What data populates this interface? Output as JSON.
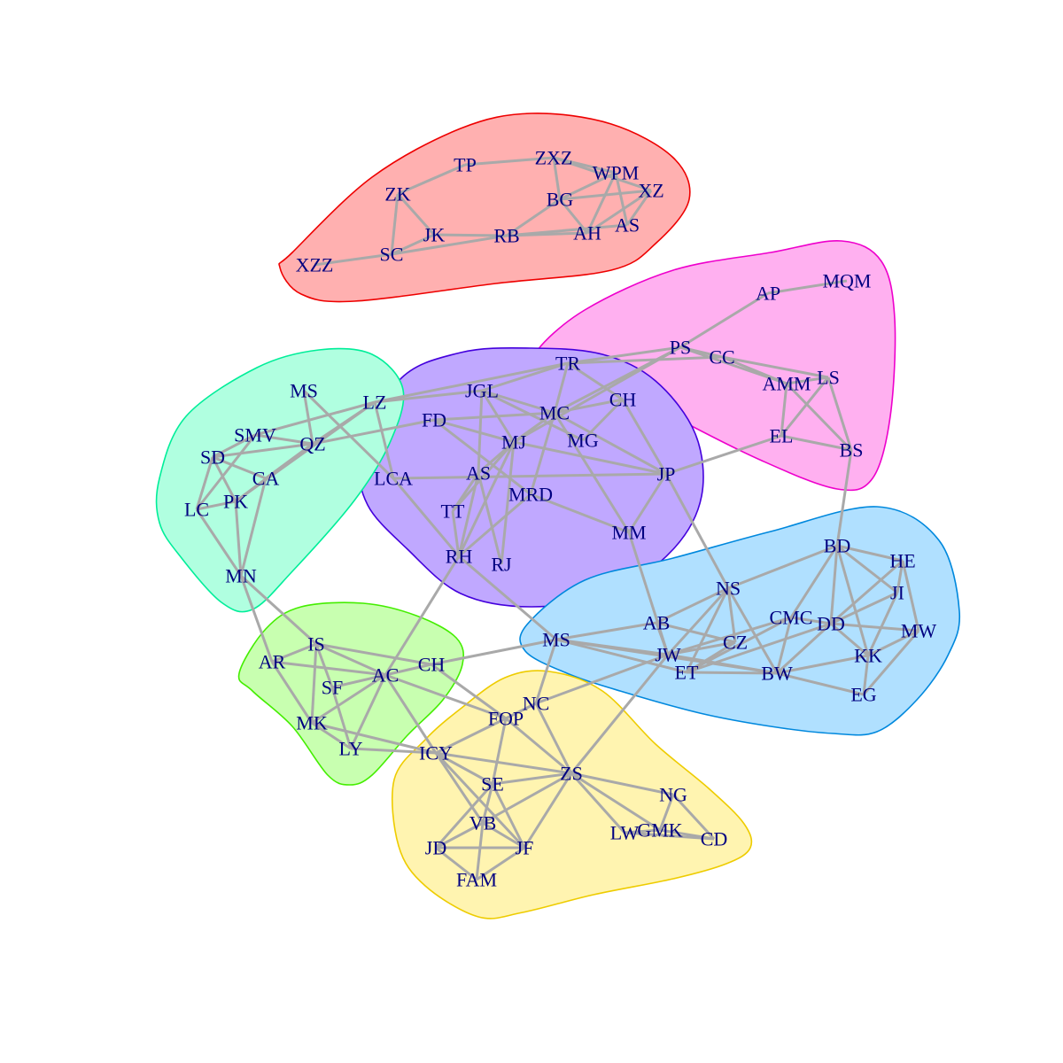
{
  "colors": {
    "edge": "#a9a9a9",
    "label": "#000080",
    "background": "#ffffff"
  },
  "groups": [
    {
      "id": "red",
      "fill": "#ffb0b0",
      "stroke": "#ee0000",
      "members": [
        "TP",
        "ZXZ",
        "WPM",
        "XZ",
        "ZK",
        "BG",
        "AS_red",
        "AH",
        "JK",
        "RB",
        "SC",
        "XZZ"
      ]
    },
    {
      "id": "magenta",
      "fill": "#ffb0f0",
      "stroke": "#ee00cc",
      "members": [
        "AP",
        "MQM",
        "PS",
        "CC",
        "AMM",
        "LS",
        "EL",
        "BS"
      ]
    },
    {
      "id": "purple",
      "fill": "#c0a8ff",
      "stroke": "#4400dd",
      "members": [
        "TR",
        "JGL",
        "CH_top",
        "MC",
        "FD",
        "MJ",
        "MG",
        "AS_mid",
        "JP",
        "LCA",
        "MRD",
        "TT",
        "MM",
        "RH",
        "RJ"
      ]
    },
    {
      "id": "teal",
      "fill": "#b0ffe0",
      "stroke": "#00ee99",
      "members": [
        "MS_top",
        "LZ",
        "SMV",
        "QZ",
        "SD",
        "CA",
        "PK",
        "LC",
        "MN"
      ]
    },
    {
      "id": "blue",
      "fill": "#b0e0ff",
      "stroke": "#0088dd",
      "members": [
        "BD",
        "HE",
        "JI",
        "NS",
        "CMC",
        "DD",
        "MW",
        "AB",
        "CZ",
        "KK",
        "MS_mid",
        "JW",
        "ET",
        "BW",
        "EG"
      ]
    },
    {
      "id": "green",
      "fill": "#c8ffb0",
      "stroke": "#44ee00",
      "members": [
        "IS",
        "AR",
        "CH_low",
        "AC",
        "SF",
        "MK",
        "LY"
      ]
    },
    {
      "id": "yellow",
      "fill": "#fff4b0",
      "stroke": "#eecc00",
      "members": [
        "NC",
        "FOP",
        "ICY",
        "ZS",
        "SE",
        "NG",
        "VB",
        "LW",
        "GMK",
        "CD",
        "JD",
        "JF",
        "FAM"
      ]
    }
  ],
  "nodes": [
    {
      "id": "TP",
      "label": "TP"
    },
    {
      "id": "ZXZ",
      "label": "ZXZ"
    },
    {
      "id": "WPM",
      "label": "WPM"
    },
    {
      "id": "XZ",
      "label": "XZ"
    },
    {
      "id": "ZK",
      "label": "ZK"
    },
    {
      "id": "BG",
      "label": "BG"
    },
    {
      "id": "AS_red",
      "label": "AS"
    },
    {
      "id": "AH",
      "label": "AH"
    },
    {
      "id": "JK",
      "label": "JK"
    },
    {
      "id": "RB",
      "label": "RB"
    },
    {
      "id": "SC",
      "label": "SC"
    },
    {
      "id": "XZZ",
      "label": "XZZ"
    },
    {
      "id": "AP",
      "label": "AP"
    },
    {
      "id": "MQM",
      "label": "MQM"
    },
    {
      "id": "PS",
      "label": "PS"
    },
    {
      "id": "CC",
      "label": "CC"
    },
    {
      "id": "AMM",
      "label": "AMM"
    },
    {
      "id": "LS",
      "label": "LS"
    },
    {
      "id": "EL",
      "label": "EL"
    },
    {
      "id": "BS",
      "label": "BS"
    },
    {
      "id": "TR",
      "label": "TR"
    },
    {
      "id": "JGL",
      "label": "JGL"
    },
    {
      "id": "CH_top",
      "label": "CH"
    },
    {
      "id": "MC",
      "label": "MC"
    },
    {
      "id": "FD",
      "label": "FD"
    },
    {
      "id": "MJ",
      "label": "MJ"
    },
    {
      "id": "MG",
      "label": "MG"
    },
    {
      "id": "AS_mid",
      "label": "AS"
    },
    {
      "id": "JP",
      "label": "JP"
    },
    {
      "id": "LCA",
      "label": "LCA"
    },
    {
      "id": "MRD",
      "label": "MRD"
    },
    {
      "id": "TT",
      "label": "TT"
    },
    {
      "id": "MM",
      "label": "MM"
    },
    {
      "id": "RH",
      "label": "RH"
    },
    {
      "id": "RJ",
      "label": "RJ"
    },
    {
      "id": "MS_top",
      "label": "MS"
    },
    {
      "id": "LZ",
      "label": "LZ"
    },
    {
      "id": "SMV",
      "label": "SMV"
    },
    {
      "id": "QZ",
      "label": "QZ"
    },
    {
      "id": "SD",
      "label": "SD"
    },
    {
      "id": "CA",
      "label": "CA"
    },
    {
      "id": "PK",
      "label": "PK"
    },
    {
      "id": "LC",
      "label": "LC"
    },
    {
      "id": "MN",
      "label": "MN"
    },
    {
      "id": "BD",
      "label": "BD"
    },
    {
      "id": "HE",
      "label": "HE"
    },
    {
      "id": "JI",
      "label": "JI"
    },
    {
      "id": "NS",
      "label": "NS"
    },
    {
      "id": "CMC",
      "label": "CMC"
    },
    {
      "id": "DD",
      "label": "DD"
    },
    {
      "id": "MW",
      "label": "MW"
    },
    {
      "id": "AB",
      "label": "AB"
    },
    {
      "id": "CZ",
      "label": "CZ"
    },
    {
      "id": "KK",
      "label": "KK"
    },
    {
      "id": "MS_mid",
      "label": "MS"
    },
    {
      "id": "JW",
      "label": "JW"
    },
    {
      "id": "ET",
      "label": "ET"
    },
    {
      "id": "BW",
      "label": "BW"
    },
    {
      "id": "EG",
      "label": "EG"
    },
    {
      "id": "IS",
      "label": "IS"
    },
    {
      "id": "AR",
      "label": "AR"
    },
    {
      "id": "CH_low",
      "label": "CH"
    },
    {
      "id": "AC",
      "label": "AC"
    },
    {
      "id": "SF",
      "label": "SF"
    },
    {
      "id": "MK",
      "label": "MK"
    },
    {
      "id": "LY",
      "label": "LY"
    },
    {
      "id": "NC",
      "label": "NC"
    },
    {
      "id": "FOP",
      "label": "FOP"
    },
    {
      "id": "ICY",
      "label": "ICY"
    },
    {
      "id": "ZS",
      "label": "ZS"
    },
    {
      "id": "SE",
      "label": "SE"
    },
    {
      "id": "NG",
      "label": "NG"
    },
    {
      "id": "VB",
      "label": "VB"
    },
    {
      "id": "LW",
      "label": "LW"
    },
    {
      "id": "GMK",
      "label": "GMK"
    },
    {
      "id": "CD",
      "label": "CD"
    },
    {
      "id": "JD",
      "label": "JD"
    },
    {
      "id": "JF",
      "label": "JF"
    },
    {
      "id": "FAM",
      "label": "FAM"
    }
  ],
  "edges": [
    [
      "TP",
      "ZXZ"
    ],
    [
      "TP",
      "ZK"
    ],
    [
      "ZK",
      "JK"
    ],
    [
      "ZK",
      "SC"
    ],
    [
      "SC",
      "XZZ"
    ],
    [
      "SC",
      "JK"
    ],
    [
      "SC",
      "RB"
    ],
    [
      "JK",
      "RB"
    ],
    [
      "RB",
      "BG"
    ],
    [
      "RB",
      "AH"
    ],
    [
      "RB",
      "AS_red"
    ],
    [
      "ZXZ",
      "BG"
    ],
    [
      "ZXZ",
      "WPM"
    ],
    [
      "ZXZ",
      "XZ"
    ],
    [
      "BG",
      "XZ"
    ],
    [
      "BG",
      "AH"
    ],
    [
      "WPM",
      "AH"
    ],
    [
      "WPM",
      "AS_red"
    ],
    [
      "XZ",
      "AH"
    ],
    [
      "XZ",
      "AS_red"
    ],
    [
      "BG",
      "WPM"
    ],
    [
      "AP",
      "MQM"
    ],
    [
      "AP",
      "PS"
    ],
    [
      "PS",
      "CC"
    ],
    [
      "PS",
      "TR"
    ],
    [
      "PS",
      "MC"
    ],
    [
      "PS",
      "AMM"
    ],
    [
      "CC",
      "TR"
    ],
    [
      "CC",
      "LS"
    ],
    [
      "CC",
      "AMM"
    ],
    [
      "AMM",
      "LS"
    ],
    [
      "AMM",
      "EL"
    ],
    [
      "AMM",
      "BS"
    ],
    [
      "LS",
      "EL"
    ],
    [
      "LS",
      "BS"
    ],
    [
      "EL",
      "BS"
    ],
    [
      "EL",
      "JP"
    ],
    [
      "BS",
      "BD"
    ],
    [
      "PS",
      "MJ"
    ],
    [
      "TR",
      "LZ"
    ],
    [
      "TR",
      "JGL"
    ],
    [
      "TR",
      "CH_top"
    ],
    [
      "TR",
      "MC"
    ],
    [
      "JGL",
      "MC"
    ],
    [
      "JGL",
      "AS_mid"
    ],
    [
      "JGL",
      "MJ"
    ],
    [
      "JGL",
      "MG"
    ],
    [
      "CH_top",
      "MC"
    ],
    [
      "CH_top",
      "MG"
    ],
    [
      "CH_top",
      "JP"
    ],
    [
      "MC",
      "MJ"
    ],
    [
      "MC",
      "MRD"
    ],
    [
      "MC",
      "MM"
    ],
    [
      "MC",
      "FD"
    ],
    [
      "MC",
      "JP"
    ],
    [
      "FD",
      "QZ"
    ],
    [
      "FD",
      "MJ"
    ],
    [
      "FD",
      "MRD"
    ],
    [
      "MJ",
      "AS_mid"
    ],
    [
      "MJ",
      "TT"
    ],
    [
      "MJ",
      "RH"
    ],
    [
      "MJ",
      "RJ"
    ],
    [
      "AS_mid",
      "RH"
    ],
    [
      "AS_mid",
      "RJ"
    ],
    [
      "AS_mid",
      "TT"
    ],
    [
      "MRD",
      "MM"
    ],
    [
      "MRD",
      "RH"
    ],
    [
      "LCA",
      "JP"
    ],
    [
      "LCA",
      "RH"
    ],
    [
      "JP",
      "MM"
    ],
    [
      "JP",
      "NS"
    ],
    [
      "TT",
      "RH"
    ],
    [
      "RH",
      "MS_mid"
    ],
    [
      "RH",
      "AC"
    ],
    [
      "MM",
      "JW"
    ],
    [
      "JP",
      "MJ"
    ],
    [
      "MS_top",
      "QZ"
    ],
    [
      "MS_top",
      "LCA"
    ],
    [
      "LZ",
      "QZ"
    ],
    [
      "LZ",
      "SMV"
    ],
    [
      "LZ",
      "JGL"
    ],
    [
      "LZ",
      "PK"
    ],
    [
      "LZ",
      "LCA"
    ],
    [
      "SMV",
      "QZ"
    ],
    [
      "SMV",
      "SD"
    ],
    [
      "SMV",
      "LC"
    ],
    [
      "QZ",
      "SD"
    ],
    [
      "QZ",
      "CA"
    ],
    [
      "QZ",
      "PK"
    ],
    [
      "SD",
      "CA"
    ],
    [
      "SD",
      "LC"
    ],
    [
      "SD",
      "PK"
    ],
    [
      "CA",
      "MN"
    ],
    [
      "PK",
      "LC"
    ],
    [
      "PK",
      "MN"
    ],
    [
      "LC",
      "MN"
    ],
    [
      "MN",
      "IS"
    ],
    [
      "MN",
      "AR"
    ],
    [
      "BD",
      "HE"
    ],
    [
      "BD",
      "JI"
    ],
    [
      "BD",
      "NS"
    ],
    [
      "BD",
      "CMC"
    ],
    [
      "BD",
      "DD"
    ],
    [
      "BD",
      "KK"
    ],
    [
      "HE",
      "JI"
    ],
    [
      "HE",
      "MW"
    ],
    [
      "HE",
      "DD"
    ],
    [
      "JI",
      "DD"
    ],
    [
      "JI",
      "KK"
    ],
    [
      "DD",
      "MW"
    ],
    [
      "DD",
      "KK"
    ],
    [
      "DD",
      "BW"
    ],
    [
      "DD",
      "CMC"
    ],
    [
      "MW",
      "EG"
    ],
    [
      "MW",
      "KK"
    ],
    [
      "KK",
      "BW"
    ],
    [
      "KK",
      "EG"
    ],
    [
      "BW",
      "EG"
    ],
    [
      "BW",
      "ET"
    ],
    [
      "BW",
      "JW"
    ],
    [
      "BW",
      "NS"
    ],
    [
      "BW",
      "CMC"
    ],
    [
      "NS",
      "JW"
    ],
    [
      "NS",
      "CZ"
    ],
    [
      "NS",
      "ET"
    ],
    [
      "NS",
      "AB"
    ],
    [
      "AB",
      "MS_mid"
    ],
    [
      "AB",
      "JW"
    ],
    [
      "AB",
      "CZ"
    ],
    [
      "CZ",
      "JW"
    ],
    [
      "CZ",
      "ET"
    ],
    [
      "CMC",
      "JW"
    ],
    [
      "CMC",
      "ET"
    ],
    [
      "DD",
      "ET"
    ],
    [
      "MS_mid",
      "JW"
    ],
    [
      "MS_mid",
      "ET"
    ],
    [
      "MS_mid",
      "BW"
    ],
    [
      "MS_mid",
      "CH_low"
    ],
    [
      "MS_mid",
      "NC"
    ],
    [
      "JW",
      "ZS"
    ],
    [
      "JW",
      "NC"
    ],
    [
      "IS",
      "AC"
    ],
    [
      "IS",
      "CH_low"
    ],
    [
      "IS",
      "SF"
    ],
    [
      "IS",
      "MK"
    ],
    [
      "IS",
      "AR"
    ],
    [
      "AR",
      "AC"
    ],
    [
      "AR",
      "MK"
    ],
    [
      "AC",
      "SF"
    ],
    [
      "AC",
      "MK"
    ],
    [
      "AC",
      "LY"
    ],
    [
      "AC",
      "ICY"
    ],
    [
      "AC",
      "FOP"
    ],
    [
      "CH_low",
      "AC"
    ],
    [
      "CH_low",
      "FOP"
    ],
    [
      "SF",
      "LY"
    ],
    [
      "MK",
      "LY"
    ],
    [
      "MK",
      "ICY"
    ],
    [
      "LY",
      "ICY"
    ],
    [
      "NC",
      "FOP"
    ],
    [
      "NC",
      "ZS"
    ],
    [
      "FOP",
      "ICY"
    ],
    [
      "FOP",
      "SE"
    ],
    [
      "FOP",
      "ZS"
    ],
    [
      "ICY",
      "ZS"
    ],
    [
      "ICY",
      "SE"
    ],
    [
      "ICY",
      "VB"
    ],
    [
      "ICY",
      "JF"
    ],
    [
      "ZS",
      "SE"
    ],
    [
      "ZS",
      "NG"
    ],
    [
      "ZS",
      "LW"
    ],
    [
      "ZS",
      "GMK"
    ],
    [
      "ZS",
      "JF"
    ],
    [
      "ZS",
      "VB"
    ],
    [
      "SE",
      "VB"
    ],
    [
      "SE",
      "JF"
    ],
    [
      "SE",
      "JD"
    ],
    [
      "NG",
      "GMK"
    ],
    [
      "NG",
      "CD"
    ],
    [
      "LW",
      "GMK"
    ],
    [
      "LW",
      "CD"
    ],
    [
      "GMK",
      "CD"
    ],
    [
      "VB",
      "JD"
    ],
    [
      "VB",
      "JF"
    ],
    [
      "VB",
      "FAM"
    ],
    [
      "JD",
      "JF"
    ],
    [
      "JD",
      "FAM"
    ],
    [
      "JF",
      "FAM"
    ]
  ]
}
